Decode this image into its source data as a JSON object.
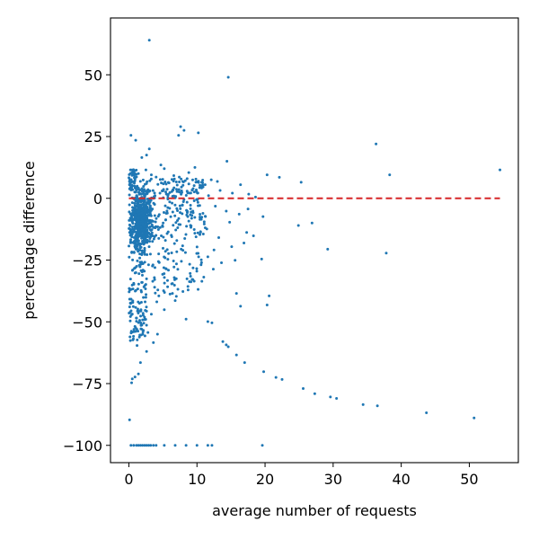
{
  "chart_data": {
    "type": "scatter",
    "title": "",
    "xlabel": "average number of requests",
    "ylabel": "percentage difference",
    "xlim": [
      -2.7,
      57.2
    ],
    "ylim": [
      -107,
      73
    ],
    "xticks": [
      0,
      10,
      20,
      30,
      40,
      50
    ],
    "yticks": [
      50,
      25,
      0,
      -25,
      -50,
      -75,
      -100
    ],
    "ytick_labels": [
      "50",
      "25",
      "0",
      "−25",
      "−50",
      "−75",
      "−100"
    ],
    "grid": false,
    "legend": "none",
    "point_color": "#1f77b4",
    "reference_line": {
      "y": 0,
      "x_start": 0,
      "x_end": 54.5,
      "style": "dashed",
      "color": "#d62728"
    },
    "points": [
      [
        3.0,
        64
      ],
      [
        14.6,
        49
      ],
      [
        7.6,
        29
      ],
      [
        8.1,
        27.5
      ],
      [
        10.2,
        26.5
      ],
      [
        0.3,
        25.5
      ],
      [
        7.3,
        25.5
      ],
      [
        1.0,
        23.5
      ],
      [
        36.3,
        22
      ],
      [
        54.5,
        11.5
      ],
      [
        38.3,
        9.5
      ],
      [
        20.3,
        9.5
      ],
      [
        22.1,
        8.5
      ],
      [
        25.3,
        6.5
      ],
      [
        14.4,
        15
      ],
      [
        3.0,
        20
      ],
      [
        2.6,
        17.5
      ],
      [
        1.9,
        16.5
      ],
      [
        4.7,
        13.5
      ],
      [
        5.2,
        12
      ],
      [
        2.5,
        11.5
      ],
      [
        9.7,
        12.5
      ],
      [
        12.1,
        7.5
      ],
      [
        16.4,
        5.5
      ],
      [
        13.0,
        6.8
      ],
      [
        11.2,
        5.5
      ],
      [
        8.8,
        10.4
      ],
      [
        6.6,
        9.2
      ],
      [
        7.4,
        8.6
      ],
      [
        4.0,
        8.6
      ],
      [
        3.3,
        9.5
      ],
      [
        1.4,
        10
      ],
      [
        0.8,
        8.3
      ],
      [
        2.1,
        7.4
      ],
      [
        5.8,
        6.4
      ],
      [
        10.4,
        4.3
      ],
      [
        13.4,
        3.2
      ],
      [
        15.2,
        2.1
      ],
      [
        17.6,
        1.7
      ],
      [
        18.6,
        0.5
      ],
      [
        11.7,
        1.1
      ],
      [
        9.6,
        2.6
      ],
      [
        12.7,
        -3.2
      ],
      [
        14.3,
        -5.2
      ],
      [
        16.2,
        -6.4
      ],
      [
        17.5,
        -4.3
      ],
      [
        14.8,
        -9.7
      ],
      [
        17.3,
        -13.8
      ],
      [
        19.7,
        -7.4
      ],
      [
        16.9,
        -18.1
      ],
      [
        15.1,
        -19.6
      ],
      [
        13.2,
        -15.9
      ],
      [
        12.5,
        -20.9
      ],
      [
        15.6,
        -25.1
      ],
      [
        11.6,
        -23.7
      ],
      [
        10.6,
        -26.9
      ],
      [
        12.4,
        -28.7
      ],
      [
        13.6,
        -26.1
      ],
      [
        9.0,
        -30.4
      ],
      [
        11.0,
        -31.9
      ],
      [
        8.7,
        -37.1
      ],
      [
        9.4,
        -32.9
      ],
      [
        7.2,
        -36.8
      ],
      [
        6.7,
        -35.2
      ],
      [
        5.1,
        -37.4
      ],
      [
        4.4,
        -39.5
      ],
      [
        4.1,
        -41.9
      ],
      [
        6.8,
        -41.4
      ],
      [
        15.8,
        -38.5
      ],
      [
        16.4,
        -43.7
      ],
      [
        20.6,
        -39.5
      ],
      [
        20.3,
        -43.2
      ],
      [
        19.5,
        -24.6
      ],
      [
        18.3,
        -15.2
      ],
      [
        24.9,
        -11.0
      ],
      [
        26.9,
        -10.0
      ],
      [
        29.2,
        -20.6
      ],
      [
        37.8,
        -22.2
      ],
      [
        3.3,
        -46.9
      ],
      [
        5.2,
        -45.1
      ],
      [
        11.6,
        -49.9
      ],
      [
        12.2,
        -50.4
      ],
      [
        8.4,
        -48.9
      ],
      [
        0.2,
        -46.1
      ],
      [
        2.3,
        -49.1
      ],
      [
        1.9,
        -51.3
      ],
      [
        0.6,
        -57.3
      ],
      [
        2.8,
        -54.3
      ],
      [
        1.2,
        -59.6
      ],
      [
        2.6,
        -62.0
      ],
      [
        1.7,
        -66.5
      ],
      [
        1.4,
        -71.1
      ],
      [
        0.9,
        -72.3
      ],
      [
        0.5,
        -73.1
      ],
      [
        0.4,
        -74.7
      ],
      [
        0.1,
        -89.7
      ],
      [
        13.8,
        -58.0
      ],
      [
        14.3,
        -59.3
      ],
      [
        14.6,
        -60.1
      ],
      [
        15.8,
        -63.4
      ],
      [
        17.0,
        -66.5
      ],
      [
        19.8,
        -70.2
      ],
      [
        21.6,
        -72.5
      ],
      [
        22.5,
        -73.3
      ],
      [
        25.6,
        -77.0
      ],
      [
        27.3,
        -79.1
      ],
      [
        29.6,
        -80.4
      ],
      [
        30.5,
        -81.0
      ],
      [
        34.4,
        -83.5
      ],
      [
        36.5,
        -84.0
      ],
      [
        43.7,
        -86.8
      ],
      [
        50.7,
        -88.9
      ],
      [
        4.2,
        -55.0
      ],
      [
        3.6,
        -58.4
      ],
      [
        0.3,
        -100
      ],
      [
        0.7,
        -100
      ],
      [
        1.1,
        -100
      ],
      [
        1.4,
        -100
      ],
      [
        1.7,
        -100
      ],
      [
        2.0,
        -100
      ],
      [
        2.3,
        -100
      ],
      [
        2.6,
        -100
      ],
      [
        2.9,
        -100
      ],
      [
        3.2,
        -100
      ],
      [
        3.6,
        -100
      ],
      [
        4.0,
        -100
      ],
      [
        5.2,
        -100
      ],
      [
        6.8,
        -100
      ],
      [
        8.4,
        -100
      ],
      [
        10.0,
        -100
      ],
      [
        11.6,
        -100
      ],
      [
        12.2,
        -100
      ],
      [
        19.6,
        -100
      ]
    ],
    "dense_cluster": {
      "x_range": [
        0,
        12
      ],
      "y_range": [
        -55,
        10
      ],
      "description": "dense scatter concentrated near x 0-3 and y -20 to 5"
    }
  }
}
